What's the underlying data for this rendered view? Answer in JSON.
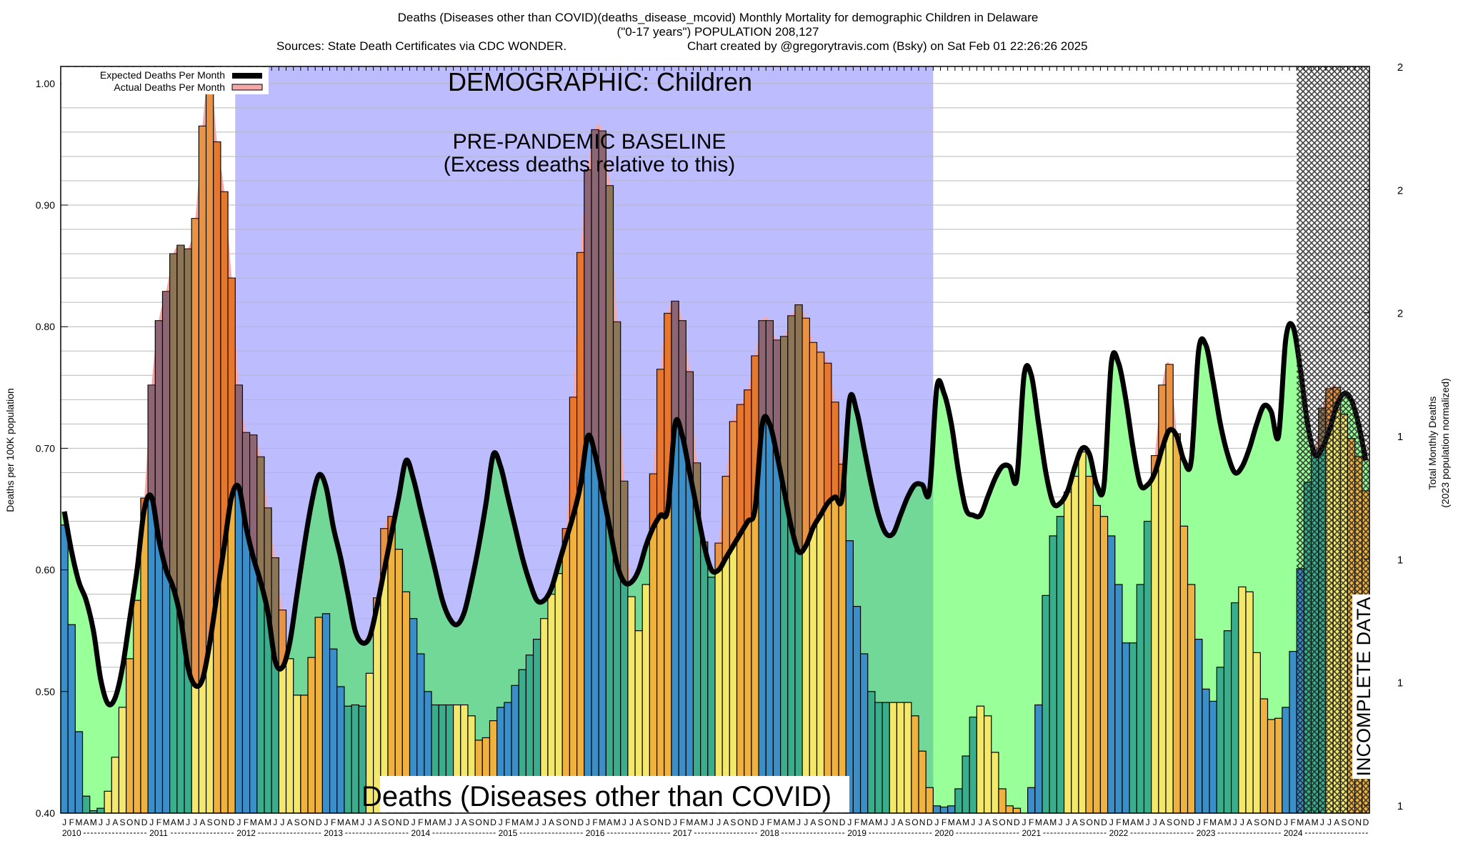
{
  "header": {
    "line1": "Deaths (Diseases other than COVID)(deaths_disease_mcovid) Monthly Mortality for demographic Children in Delaware",
    "line2": "(\"0-17 years\") POPULATION 208,127",
    "line3_left": "Sources: State Death Certificates via CDC WONDER.",
    "line3_right": "Chart created by @gregorytravis.com (Bsky) on Sat Feb 01 22:26:26 2025"
  },
  "chart_data": {
    "type": "bar",
    "title": "Deaths (Diseases other than COVID)(deaths_disease_mcovid) Monthly Mortality for demographic Children in Delaware",
    "ylabel": "Deaths per 100K population",
    "y2label_line1": "Total Monthly Deaths",
    "y2label_line2": "(2023 population normalized)",
    "ylim": [
      0.4,
      1.014
    ],
    "yticks": [
      "0.40",
      "0.50",
      "0.60",
      "0.70",
      "0.80",
      "0.90",
      "1.00"
    ],
    "y2ticks": [
      "2",
      "2",
      "2",
      "1",
      "1",
      "1",
      "1"
    ],
    "grid": true,
    "legend_placement": "top-left",
    "legend": [
      {
        "label": "Expected Deaths Per Month",
        "color": "#000000"
      },
      {
        "label": "Actual Deaths Per Month",
        "color": "#f4a8a8"
      }
    ],
    "month_letters": [
      "J",
      "F",
      "M",
      "A",
      "M",
      "J",
      "J",
      "A",
      "S",
      "O",
      "N",
      "D"
    ],
    "years": [
      "2010",
      "2011",
      "2012",
      "2013",
      "2014",
      "2015",
      "2016",
      "2017",
      "2018",
      "2019",
      "2020",
      "2021",
      "2022",
      "2023",
      "2024"
    ],
    "actual": [
      0.637,
      0.555,
      0.467,
      0.414,
      0.402,
      0.404,
      0.418,
      0.446,
      0.487,
      0.527,
      0.575,
      0.659,
      0.752,
      0.805,
      0.829,
      0.86,
      0.867,
      0.864,
      0.889,
      0.965,
      1.014,
      0.952,
      0.911,
      0.84,
      0.752,
      0.713,
      0.711,
      0.693,
      0.651,
      0.61,
      0.567,
      0.527,
      0.497,
      0.497,
      0.528,
      0.561,
      0.564,
      0.535,
      0.504,
      0.488,
      0.489,
      0.488,
      0.515,
      0.577,
      0.634,
      0.644,
      0.617,
      0.582,
      0.56,
      0.531,
      0.5,
      0.489,
      0.489,
      0.489,
      0.489,
      0.489,
      0.48,
      0.46,
      0.462,
      0.476,
      0.487,
      0.491,
      0.505,
      0.518,
      0.53,
      0.543,
      0.56,
      0.58,
      0.597,
      0.634,
      0.742,
      0.861,
      0.929,
      0.962,
      0.961,
      0.916,
      0.804,
      0.673,
      0.578,
      0.55,
      0.588,
      0.679,
      0.765,
      0.811,
      0.821,
      0.805,
      0.763,
      0.688,
      0.623,
      0.594,
      0.622,
      0.677,
      0.722,
      0.736,
      0.748,
      0.776,
      0.805,
      0.805,
      0.789,
      0.792,
      0.809,
      0.818,
      0.807,
      0.787,
      0.779,
      0.77,
      0.738,
      0.687,
      0.624,
      0.57,
      0.531,
      0.5,
      0.491,
      0.491,
      0.491,
      0.491,
      0.491,
      0.48,
      0.451,
      0.421,
      0.406,
      0.405,
      0.406,
      0.42,
      0.447,
      0.479,
      0.488,
      0.48,
      0.45,
      0.42,
      0.406,
      0.404,
      0.4,
      0.421,
      0.489,
      0.579,
      0.628,
      0.644,
      0.664,
      0.677,
      0.697,
      0.677,
      0.653,
      0.644,
      0.628,
      0.588,
      0.54,
      0.54,
      0.588,
      0.64,
      0.694,
      0.752,
      0.769,
      0.712,
      0.636,
      0.588,
      0.543,
      0.502,
      0.492,
      0.52,
      0.55,
      0.573,
      0.586,
      0.582,
      0.532,
      0.494,
      0.477,
      0.478,
      0.487,
      0.533,
      0.601,
      0.672,
      0.698,
      0.733,
      0.749,
      0.75,
      0.728,
      0.708,
      0.693,
      0.665
    ],
    "expected": [
      0.648,
      0.615,
      0.59,
      0.575,
      0.55,
      0.51,
      0.49,
      0.495,
      0.52,
      0.56,
      0.6,
      0.65,
      0.66,
      0.625,
      0.6,
      0.585,
      0.56,
      0.52,
      0.505,
      0.51,
      0.54,
      0.58,
      0.62,
      0.66,
      0.668,
      0.635,
      0.61,
      0.59,
      0.565,
      0.525,
      0.52,
      0.54,
      0.58,
      0.62,
      0.655,
      0.678,
      0.668,
      0.635,
      0.61,
      0.58,
      0.55,
      0.54,
      0.545,
      0.57,
      0.6,
      0.63,
      0.66,
      0.69,
      0.675,
      0.65,
      0.625,
      0.6,
      0.575,
      0.56,
      0.555,
      0.565,
      0.59,
      0.62,
      0.655,
      0.695,
      0.685,
      0.66,
      0.635,
      0.61,
      0.59,
      0.575,
      0.575,
      0.585,
      0.605,
      0.625,
      0.645,
      0.67,
      0.71,
      0.695,
      0.665,
      0.635,
      0.605,
      0.59,
      0.59,
      0.6,
      0.62,
      0.635,
      0.645,
      0.65,
      0.72,
      0.71,
      0.68,
      0.65,
      0.62,
      0.6,
      0.6,
      0.61,
      0.62,
      0.63,
      0.64,
      0.65,
      0.72,
      0.72,
      0.695,
      0.665,
      0.635,
      0.615,
      0.62,
      0.635,
      0.645,
      0.655,
      0.66,
      0.66,
      0.74,
      0.73,
      0.7,
      0.67,
      0.645,
      0.63,
      0.63,
      0.645,
      0.66,
      0.67,
      0.67,
      0.665,
      0.75,
      0.745,
      0.72,
      0.68,
      0.65,
      0.645,
      0.645,
      0.66,
      0.675,
      0.685,
      0.685,
      0.675,
      0.76,
      0.76,
      0.72,
      0.68,
      0.655,
      0.655,
      0.665,
      0.685,
      0.7,
      0.695,
      0.67,
      0.67,
      0.77,
      0.77,
      0.74,
      0.7,
      0.67,
      0.67,
      0.68,
      0.7,
      0.715,
      0.71,
      0.69,
      0.69,
      0.78,
      0.785,
      0.755,
      0.72,
      0.695,
      0.68,
      0.685,
      0.7,
      0.72,
      0.735,
      0.73,
      0.71,
      0.79,
      0.8,
      0.765,
      0.72,
      0.695,
      0.7,
      0.715,
      0.735,
      0.745,
      0.74,
      0.72,
      0.69
    ],
    "season_colors": [
      "#3a8fc8",
      "#3aae8c",
      "#f4e86a",
      "#f0b23e"
    ],
    "excess_overlay_color": "#e03c1e",
    "shortfall_fill_color": "#99ff99",
    "baseline_period": [
      "2012-01",
      "2019-12"
    ],
    "baseline_color": "#bcbcff",
    "incomplete_from": "2024-03",
    "annotations": {
      "demographic": "DEMOGRAPHIC: Children",
      "baseline_line1": "PRE-PANDEMIC BASELINE",
      "baseline_line2": "(Excess deaths relative to this)",
      "cause": "Deaths (Diseases other than COVID)",
      "incomplete": "INCOMPLETE DATA"
    }
  }
}
